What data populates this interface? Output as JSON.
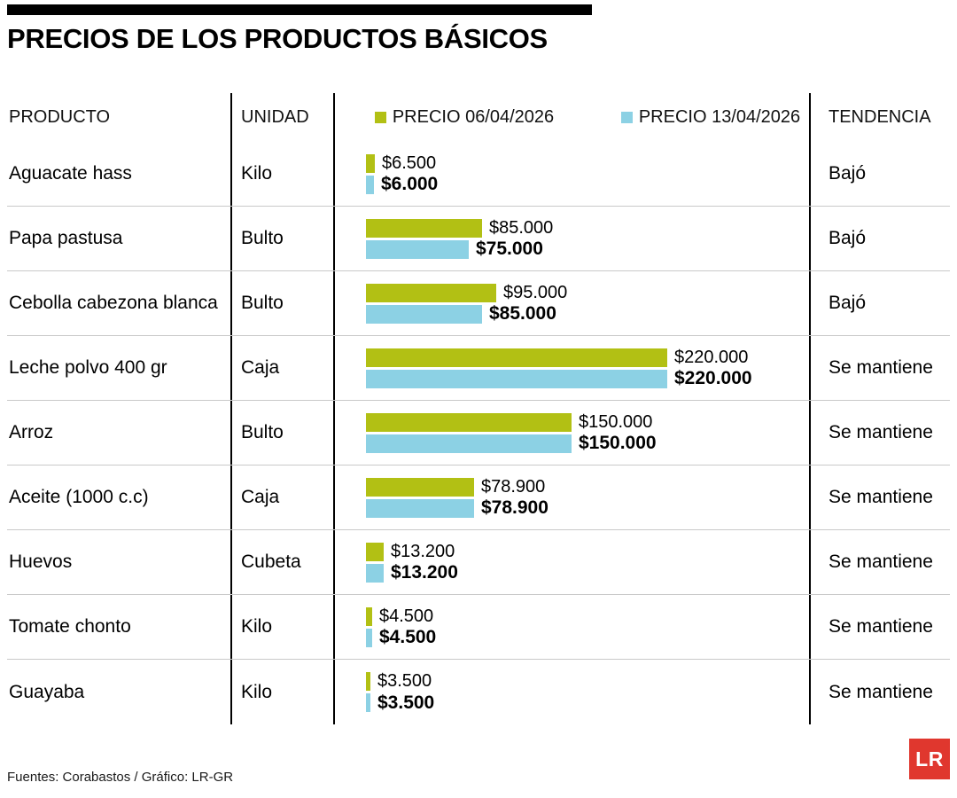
{
  "title": "PRECIOS DE LOS PRODUCTOS BÁSICOS",
  "columns": {
    "product": "PRODUCTO",
    "unit": "UNIDAD",
    "price1": "PRECIO 06/04/2026",
    "price2": "PRECIO 13/04/2026",
    "trend": "TENDENCIA"
  },
  "colors": {
    "price1_green": "#b2c014",
    "price2_blue": "#8cd1e4",
    "logo_red": "#e0372e",
    "separator_gray": "#c9c9c9"
  },
  "chart_data": {
    "type": "bar",
    "orientation": "horizontal",
    "title": "PRECIOS DE LOS PRODUCTOS BÁSICOS",
    "categories": [
      "Aguacate hass",
      "Papa pastusa",
      "Cebolla cabezona blanca",
      "Leche polvo 400 gr",
      "Arroz",
      "Aceite (1000 c.c)",
      "Huevos",
      "Tomate chonto",
      "Guayaba"
    ],
    "units": [
      "Kilo",
      "Bulto",
      "Bulto",
      "Caja",
      "Bulto",
      "Caja",
      "Cubeta",
      "Kilo",
      "Kilo"
    ],
    "series": [
      {
        "name": "PRECIO 06/04/2026",
        "values": [
          6500,
          85000,
          95000,
          220000,
          150000,
          78900,
          13200,
          4500,
          3500
        ]
      },
      {
        "name": "PRECIO 13/04/2026",
        "values": [
          6000,
          75000,
          85000,
          220000,
          150000,
          78900,
          13200,
          4500,
          3500
        ]
      }
    ],
    "trends": [
      "Bajó",
      "Bajó",
      "Bajó",
      "Se mantiene",
      "Se mantiene",
      "Se mantiene",
      "Se mantiene",
      "Se mantiene",
      "Se mantiene"
    ],
    "max_value": 220000,
    "legend_position": "top",
    "grid": false
  },
  "rows": [
    {
      "product": "Aguacate hass",
      "unit": "Kilo",
      "price1": 6500,
      "price1_label": "$6.500",
      "price2": 6000,
      "price2_label": "$6.000",
      "trend": "Bajó"
    },
    {
      "product": "Papa pastusa",
      "unit": "Bulto",
      "price1": 85000,
      "price1_label": "$85.000",
      "price2": 75000,
      "price2_label": "$75.000",
      "trend": "Bajó"
    },
    {
      "product": "Cebolla cabezona blanca",
      "unit": "Bulto",
      "price1": 95000,
      "price1_label": "$95.000",
      "price2": 85000,
      "price2_label": "$85.000",
      "trend": "Bajó"
    },
    {
      "product": "Leche polvo 400 gr",
      "unit": "Caja",
      "price1": 220000,
      "price1_label": "$220.000",
      "price2": 220000,
      "price2_label": "$220.000",
      "trend": "Se mantiene"
    },
    {
      "product": "Arroz",
      "unit": "Bulto",
      "price1": 150000,
      "price1_label": "$150.000",
      "price2": 150000,
      "price2_label": "$150.000",
      "trend": "Se mantiene"
    },
    {
      "product": "Aceite (1000 c.c)",
      "unit": "Caja",
      "price1": 78900,
      "price1_label": "$78.900",
      "price2": 78900,
      "price2_label": "$78.900",
      "trend": "Se mantiene"
    },
    {
      "product": "Huevos",
      "unit": "Cubeta",
      "price1": 13200,
      "price1_label": "$13.200",
      "price2": 13200,
      "price2_label": "$13.200",
      "trend": "Se mantiene"
    },
    {
      "product": "Tomate chonto",
      "unit": "Kilo",
      "price1": 4500,
      "price1_label": "$4.500",
      "price2": 4500,
      "price2_label": "$4.500",
      "trend": "Se mantiene"
    },
    {
      "product": "Guayaba",
      "unit": "Kilo",
      "price1": 3500,
      "price1_label": "$3.500",
      "price2": 3500,
      "price2_label": "$3.500",
      "trend": "Se mantiene"
    }
  ],
  "footer": "Fuentes: Corabastos / Gráfico: LR-GR",
  "logo_text": "LR"
}
